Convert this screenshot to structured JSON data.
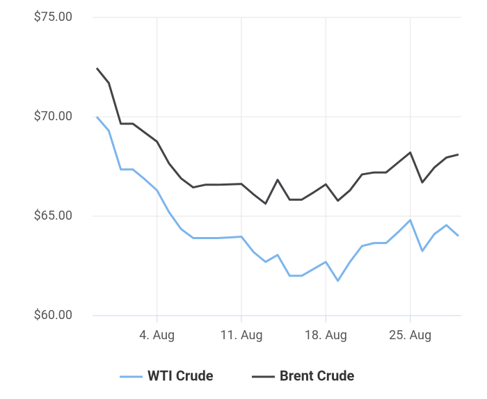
{
  "chart_data": {
    "type": "line",
    "categories": [
      null,
      null,
      null,
      null,
      null,
      "4. Aug",
      null,
      null,
      null,
      null,
      null,
      null,
      "11. Aug",
      null,
      null,
      null,
      null,
      null,
      null,
      "18. Aug",
      null,
      null,
      null,
      null,
      null,
      null,
      "25. Aug",
      null,
      null,
      null,
      null
    ],
    "series": [
      {
        "name": "WTI Crude",
        "color": "#7cb5ec",
        "values": [
          70.0,
          69.3,
          67.35,
          67.35,
          66.85,
          66.3,
          65.2,
          64.35,
          63.9,
          63.9,
          63.9,
          63.93,
          63.97,
          63.2,
          62.7,
          63.05,
          62.0,
          62.0,
          62.35,
          62.7,
          61.75,
          62.7,
          63.5,
          63.65,
          63.65,
          64.2,
          64.8,
          63.25,
          64.1,
          64.55,
          64.0
        ]
      },
      {
        "name": "Brent Crude",
        "color": "#434348",
        "values": [
          72.45,
          71.7,
          69.65,
          69.65,
          69.2,
          68.75,
          67.65,
          66.9,
          66.45,
          66.58,
          66.58,
          66.6,
          66.62,
          66.1,
          65.63,
          66.83,
          65.83,
          65.83,
          66.2,
          66.6,
          65.78,
          66.3,
          67.1,
          67.2,
          67.2,
          67.7,
          68.2,
          66.7,
          67.45,
          67.95,
          68.1
        ]
      }
    ],
    "ylim": [
      60,
      75
    ],
    "yticks": [
      {
        "value": 60,
        "label": "$60.00"
      },
      {
        "value": 65,
        "label": "$65.00"
      },
      {
        "value": 70,
        "label": "$70.00"
      },
      {
        "value": 75,
        "label": "$75.00"
      }
    ],
    "grid": true
  }
}
